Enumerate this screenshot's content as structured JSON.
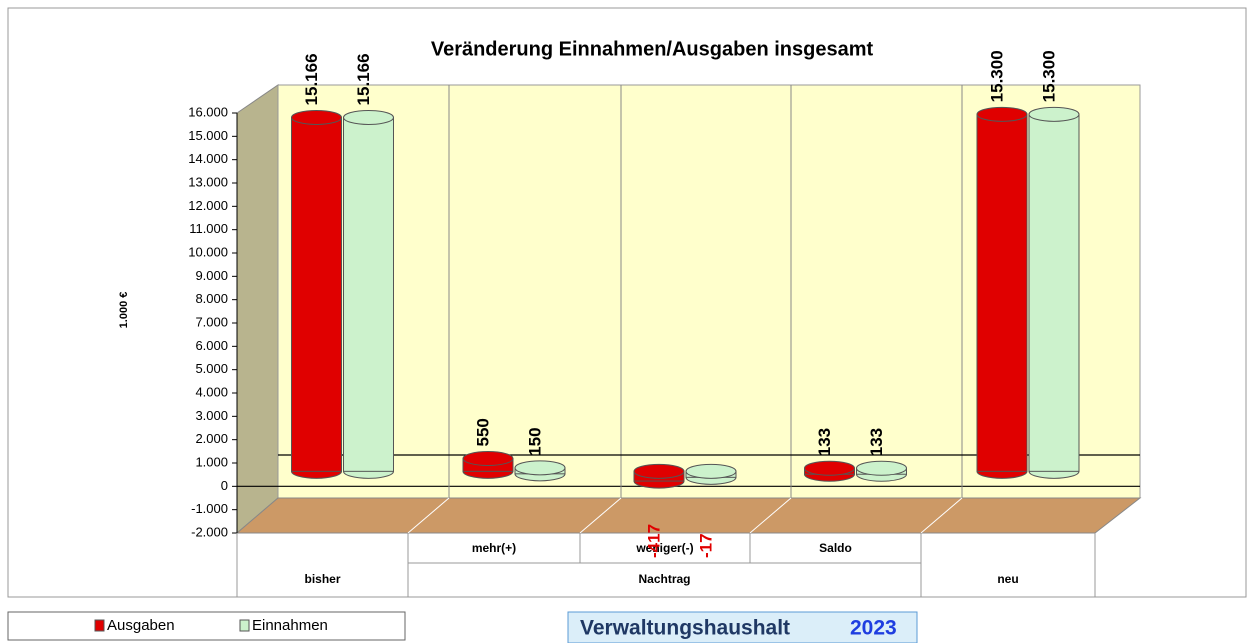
{
  "chart_data": {
    "type": "bar3d",
    "title": "Veränderung Einnahmen/Ausgaben insgesamt",
    "y_label": "1.000 €",
    "categories": [
      "bisher",
      "mehr(+)",
      "weniger(-)",
      "Saldo",
      "neu"
    ],
    "x_group_label": "Nachtrag",
    "series": [
      {
        "name": "Ausgaben",
        "color": "#e00000",
        "values": [
          15166,
          550,
          -417,
          133,
          15300
        ],
        "value_labels": [
          "15.166",
          "550",
          "-417",
          "133",
          "15.300"
        ]
      },
      {
        "name": "Einnahmen",
        "color": "#ccf2cc",
        "values": [
          15166,
          150,
          -17,
          133,
          15300
        ],
        "value_labels": [
          "15.166",
          "150",
          "-17",
          "133",
          "15.300"
        ]
      }
    ],
    "ylim": [
      -2000,
      16000
    ],
    "yticks": [
      {
        "value": -2000,
        "label": "-2.000"
      },
      {
        "value": -1000,
        "label": "-1.000"
      },
      0,
      {
        "value": 1000,
        "label": "1.000"
      },
      {
        "value": 2000,
        "label": "2.000"
      },
      {
        "value": 3000,
        "label": "3.000"
      },
      {
        "value": 4000,
        "label": "4.000"
      },
      {
        "value": 5000,
        "label": "5.000"
      },
      {
        "value": 6000,
        "label": "6.000"
      },
      {
        "value": 7000,
        "label": "7.000"
      },
      {
        "value": 8000,
        "label": "8.000"
      },
      {
        "value": 9000,
        "label": "9.000"
      },
      {
        "value": 10000,
        "label": "10.000"
      },
      {
        "value": 11000,
        "label": "11.000"
      },
      {
        "value": 12000,
        "label": "12.000"
      },
      {
        "value": 13000,
        "label": "13.000"
      },
      {
        "value": 14000,
        "label": "14.000"
      },
      {
        "value": 15000,
        "label": "15.000"
      },
      {
        "value": 16000,
        "label": "16.000"
      }
    ],
    "legend": "bottom-left",
    "footer": {
      "text": "Verwaltungshaushalt",
      "year": "2023"
    }
  }
}
